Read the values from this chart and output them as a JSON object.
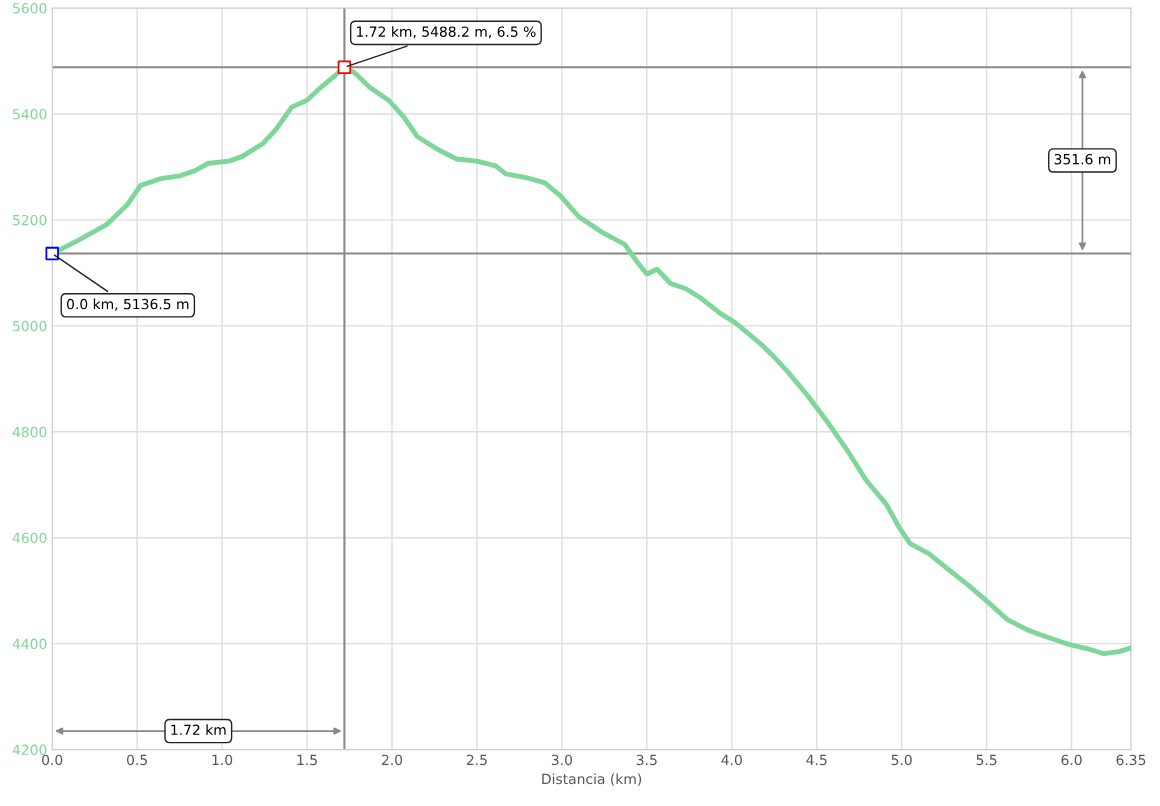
{
  "chart_data": {
    "type": "line",
    "xlabel": "Distancia (km)",
    "xlim": [
      0,
      6.35
    ],
    "xticks": [
      {
        "value": 0,
        "label": "0.0"
      },
      {
        "value": 0.5,
        "label": "0.5"
      },
      {
        "value": 1,
        "label": "1.0"
      },
      {
        "value": 1.5,
        "label": "1.5"
      },
      {
        "value": 2,
        "label": "2.0"
      },
      {
        "value": 2.5,
        "label": "2.5"
      },
      {
        "value": 3,
        "label": "3.0"
      },
      {
        "value": 3.5,
        "label": "3.5"
      },
      {
        "value": 4,
        "label": "4.0"
      },
      {
        "value": 4.5,
        "label": "4.5"
      },
      {
        "value": 5,
        "label": "5.0"
      },
      {
        "value": 5.5,
        "label": "5.5"
      },
      {
        "value": 6,
        "label": "6.0"
      },
      6.35
    ],
    "ylim": [
      4200,
      5600
    ],
    "yticks": [
      4200,
      4400,
      4600,
      4800,
      5000,
      5200,
      5400,
      5600
    ],
    "grid": true,
    "legend": false,
    "series": [
      {
        "color": "#7fd69a",
        "x": [
          0,
          0.15,
          0.32,
          0.44,
          0.52,
          0.64,
          0.75,
          0.84,
          0.92,
          1.04,
          1.12,
          1.24,
          1.32,
          1.41,
          1.5,
          1.58,
          1.67,
          1.72,
          1.78,
          1.87,
          1.98,
          2.07,
          2.15,
          2.27,
          2.38,
          2.5,
          2.61,
          2.67,
          2.79,
          2.9,
          2.99,
          3.1,
          3.24,
          3.37,
          3.44,
          3.5,
          3.56,
          3.64,
          3.73,
          3.82,
          3.93,
          4.02,
          4.16,
          4.25,
          4.33,
          4.45,
          4.56,
          4.68,
          4.79,
          4.91,
          4.99,
          5.05,
          5.16,
          5.28,
          5.39,
          5.51,
          5.62,
          5.74,
          5.85,
          5.99,
          6.11,
          6.19,
          6.28,
          6.34
        ],
        "values": [
          5136.5,
          5161,
          5191,
          5228,
          5265,
          5278,
          5283,
          5293,
          5307,
          5311,
          5320,
          5344,
          5372,
          5413,
          5426,
          5450,
          5474,
          5488.2,
          5478,
          5450,
          5426,
          5394,
          5357,
          5333,
          5315,
          5311,
          5302,
          5287,
          5280,
          5270,
          5246,
          5206,
          5176,
          5154,
          5122,
          5098,
          5107,
          5080,
          5070,
          5052,
          5024,
          5006,
          4969,
          4941,
          4913,
          4867,
          4820,
          4765,
          4709,
          4663,
          4617,
          4589,
          4570,
          4539,
          4511,
          4478,
          4446,
          4426,
          4413,
          4398,
          4389,
          4381,
          4385,
          4391
        ]
      },
      {
        "type": "scatter",
        "marker": "square",
        "color": "#ff0000",
        "x": [
          1.72
        ],
        "values": [
          5488.2
        ]
      },
      {
        "type": "scatter",
        "marker": "square",
        "color": "#0000ff",
        "x": [
          0
        ],
        "values": [
          5136.5
        ]
      }
    ],
    "ref_lines": [
      {
        "axis": "y",
        "value": 5488.2,
        "color": "#888888"
      },
      {
        "axis": "y",
        "value": 5136.5,
        "color": "#888888"
      },
      {
        "axis": "x",
        "value": 1.72,
        "color": "#888888"
      }
    ],
    "annotations": [
      {
        "text": "1.72 km, 5488.2 m, 6.5 %",
        "x": 1.72,
        "y": 5488.2
      },
      {
        "text": "0.0 km, 5136.5 m",
        "x": 0,
        "y": 5136.5
      },
      "351.6 m",
      "1.72 km"
    ]
  }
}
